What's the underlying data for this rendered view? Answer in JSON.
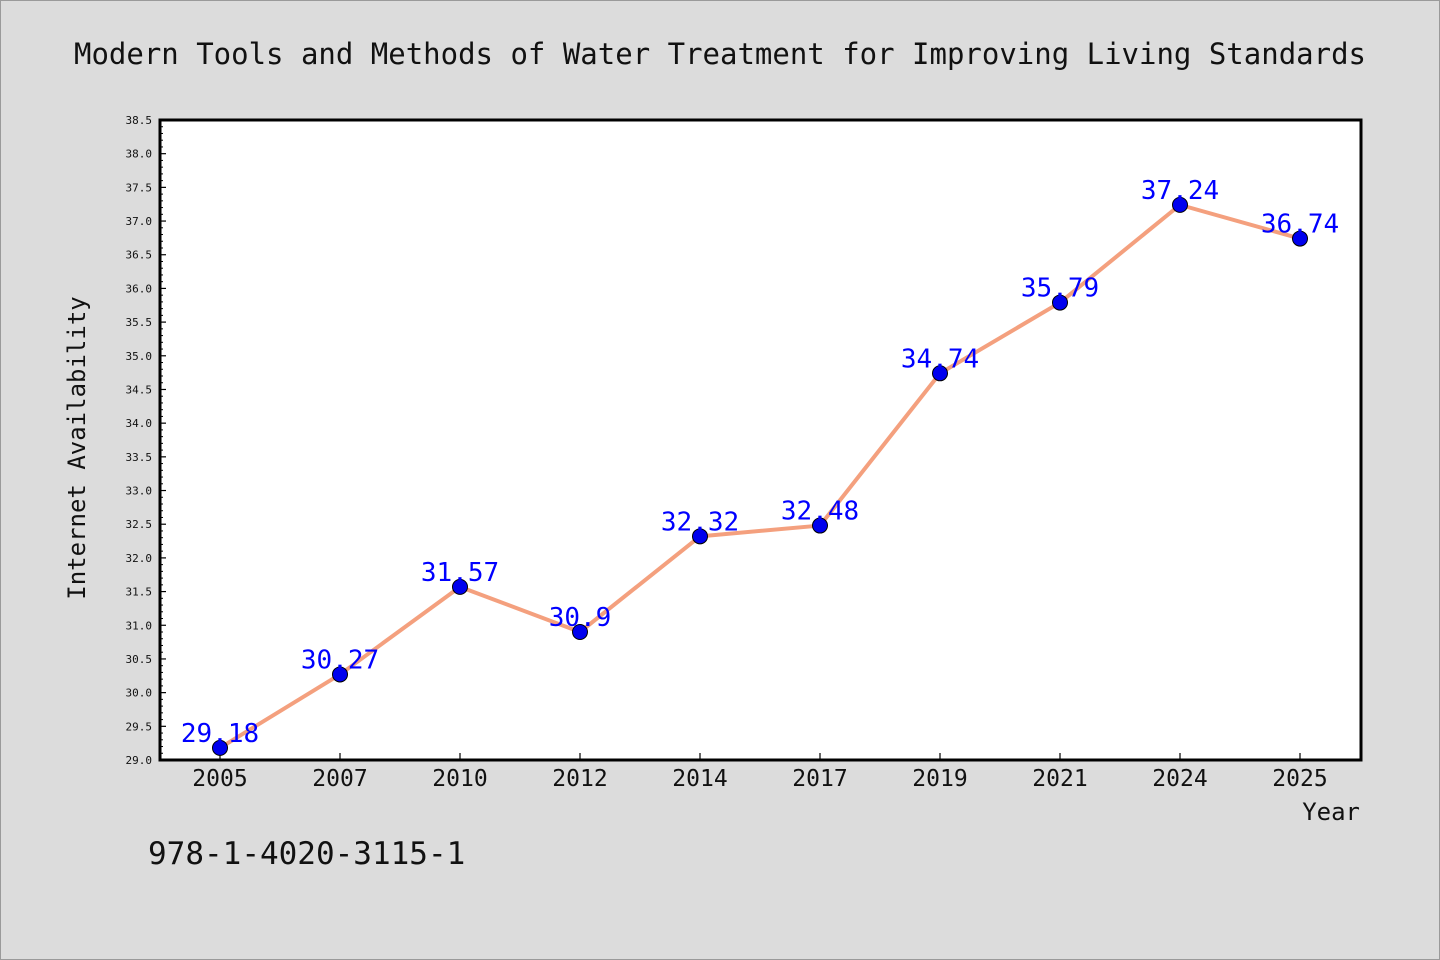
{
  "chart_data": {
    "type": "line",
    "title": "Modern Tools and Methods of Water Treatment for Improving Living Standards",
    "xlabel": "Year",
    "ylabel": "Internet Availability",
    "categories": [
      "2005",
      "2007",
      "2010",
      "2012",
      "2014",
      "2017",
      "2019",
      "2021",
      "2024",
      "2025"
    ],
    "values": [
      29.18,
      30.27,
      31.57,
      30.9,
      32.32,
      32.48,
      34.74,
      35.79,
      37.24,
      36.74
    ],
    "data_labels": [
      "29.18",
      "30.27",
      "31.57",
      "30.9",
      "32.32",
      "32.48",
      "34.74",
      "35.79",
      "37.24",
      "36.74"
    ],
    "ylim": [
      29.0,
      38.5
    ],
    "yticks": [
      "29.0",
      "29.5",
      "30.0",
      "30.5",
      "31.0",
      "31.5",
      "32.0",
      "32.5",
      "33.0",
      "33.5",
      "34.0",
      "34.5",
      "35.0",
      "35.5",
      "36.0",
      "36.5",
      "37.0",
      "37.5",
      "38.0",
      "38.5"
    ],
    "grid": false,
    "line_color": "#f4a07e",
    "marker_color": "#0000ee",
    "label_color": "#0000ff"
  },
  "footer": {
    "isbn": "978-1-4020-3115-1"
  }
}
